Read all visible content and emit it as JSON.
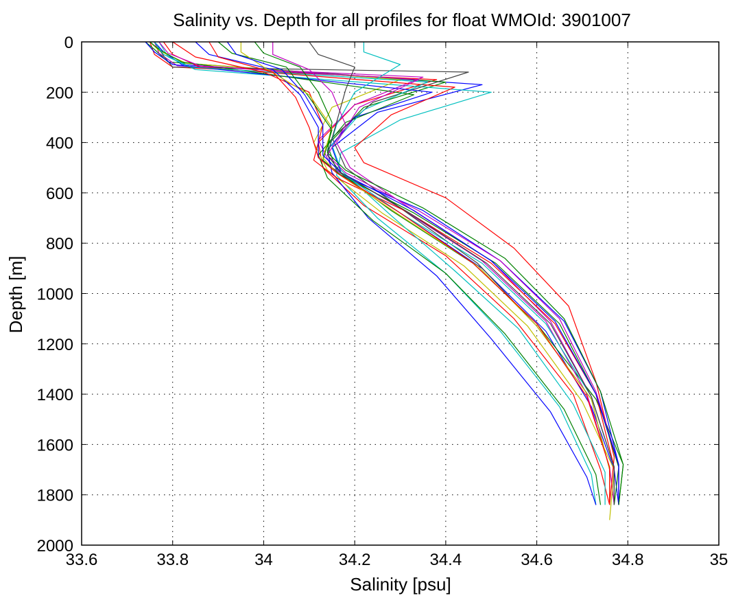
{
  "chart_data": {
    "type": "line",
    "title": "Salinity vs. Depth for all profiles for float WMOId: 3901007",
    "xlabel": "Salinity [psu]",
    "ylabel": "Depth [m]",
    "xlim": [
      33.6,
      35
    ],
    "ylim": [
      0,
      2000
    ],
    "y_reversed": true,
    "grid": true,
    "x_ticks": [
      "33.6",
      "33.8",
      "34",
      "34.2",
      "34.4",
      "34.6",
      "34.8",
      "35"
    ],
    "y_ticks": [
      "0",
      "200",
      "400",
      "600",
      "800",
      "1000",
      "1200",
      "1400",
      "1600",
      "1800",
      "2000"
    ],
    "series": [
      {
        "color": "#ff0000",
        "x": [
          33.75,
          33.76,
          33.8,
          34.38,
          34.2,
          34.12,
          34.13,
          34.22,
          34.4,
          34.55,
          34.68,
          34.74,
          34.76
        ],
        "y": [
          0,
          50,
          100,
          150,
          250,
          400,
          500,
          650,
          850,
          1100,
          1400,
          1700,
          1840
        ]
      },
      {
        "color": "#0000ff",
        "x": [
          33.76,
          33.78,
          33.82,
          34.48,
          34.25,
          34.15,
          34.17,
          34.3,
          34.48,
          34.62,
          34.72,
          34.77,
          34.78
        ],
        "y": [
          0,
          40,
          90,
          170,
          280,
          420,
          520,
          680,
          900,
          1150,
          1450,
          1700,
          1840
        ]
      },
      {
        "color": "#008000",
        "x": [
          33.74,
          33.76,
          33.79,
          34.4,
          34.22,
          34.14,
          34.16,
          34.28,
          34.46,
          34.6,
          34.73,
          34.79,
          34.78
        ],
        "y": [
          0,
          30,
          80,
          160,
          260,
          410,
          510,
          670,
          880,
          1120,
          1420,
          1680,
          1840
        ]
      },
      {
        "color": "#00bfbf",
        "x": [
          33.77,
          33.79,
          33.85,
          34.5,
          34.3,
          34.17,
          34.16,
          34.25,
          34.4,
          34.52,
          34.65,
          34.72,
          34.73
        ],
        "y": [
          0,
          60,
          110,
          200,
          310,
          440,
          530,
          700,
          920,
          1150,
          1450,
          1720,
          1840
        ]
      },
      {
        "color": "#bf00bf",
        "x": [
          33.76,
          33.77,
          33.81,
          34.35,
          34.2,
          34.12,
          34.15,
          34.3,
          34.48,
          34.62,
          34.71,
          34.76,
          34.77
        ],
        "y": [
          0,
          45,
          95,
          140,
          250,
          390,
          500,
          660,
          870,
          1110,
          1400,
          1690,
          1840
        ]
      },
      {
        "color": "#bfbf00",
        "x": [
          33.75,
          33.77,
          33.83,
          34.3,
          34.15,
          34.11,
          34.14,
          34.26,
          34.44,
          34.58,
          34.7,
          34.77,
          34.76
        ],
        "y": [
          0,
          35,
          85,
          150,
          260,
          400,
          510,
          680,
          890,
          1130,
          1430,
          1700,
          1900
        ]
      },
      {
        "color": "#404040",
        "x": [
          33.76,
          33.78,
          33.8,
          34.45,
          34.24,
          34.15,
          34.18,
          34.3,
          34.47,
          34.6,
          34.72,
          34.76,
          34.76
        ],
        "y": [
          0,
          55,
          100,
          120,
          240,
          380,
          500,
          660,
          880,
          1130,
          1420,
          1700,
          1840
        ]
      },
      {
        "color": "#ff0000",
        "x": [
          33.78,
          33.8,
          33.86,
          34.42,
          34.28,
          34.2,
          34.22,
          34.4,
          34.55,
          34.67,
          34.73,
          34.77,
          34.76
        ],
        "y": [
          0,
          50,
          100,
          180,
          290,
          420,
          480,
          620,
          820,
          1050,
          1350,
          1650,
          1840
        ]
      },
      {
        "color": "#0000ff",
        "x": [
          33.74,
          33.76,
          33.8,
          34.37,
          34.2,
          34.14,
          34.15,
          34.23,
          34.38,
          34.5,
          34.63,
          34.71,
          34.73
        ],
        "y": [
          0,
          40,
          90,
          200,
          300,
          430,
          520,
          700,
          930,
          1180,
          1470,
          1730,
          1840
        ]
      },
      {
        "color": "#008000",
        "x": [
          33.75,
          33.77,
          33.82,
          34.33,
          34.18,
          34.12,
          34.14,
          34.24,
          34.4,
          34.53,
          34.66,
          34.73,
          34.74
        ],
        "y": [
          0,
          30,
          80,
          210,
          320,
          450,
          540,
          710,
          920,
          1160,
          1460,
          1720,
          1840
        ]
      },
      {
        "color": "#00bfbf",
        "x": [
          33.76,
          33.78,
          33.84,
          34.36,
          34.22,
          34.15,
          34.17,
          34.28,
          34.42,
          34.56,
          34.68,
          34.75,
          34.75
        ],
        "y": [
          0,
          50,
          100,
          160,
          270,
          410,
          510,
          690,
          910,
          1140,
          1440,
          1710,
          1840
        ]
      },
      {
        "color": "#bf00bf",
        "x": [
          33.77,
          33.79,
          33.86,
          34.34,
          34.21,
          34.16,
          34.19,
          34.32,
          34.5,
          34.63,
          34.72,
          34.77,
          34.77
        ],
        "y": [
          0,
          45,
          95,
          150,
          260,
          400,
          500,
          660,
          870,
          1110,
          1410,
          1690,
          1840
        ]
      },
      {
        "color": "#ff0000",
        "x": [
          33.8,
          33.85,
          34.0,
          34.1,
          34.13,
          34.11,
          34.16,
          34.32,
          34.5,
          34.64,
          34.73,
          34.77,
          34.77
        ],
        "y": [
          0,
          60,
          120,
          200,
          330,
          470,
          540,
          680,
          880,
          1120,
          1400,
          1690,
          1840
        ]
      },
      {
        "color": "#0000ff",
        "x": [
          33.85,
          33.88,
          34.02,
          34.08,
          34.12,
          34.12,
          34.17,
          34.35,
          34.52,
          34.66,
          34.74,
          34.78,
          34.78
        ],
        "y": [
          0,
          50,
          110,
          210,
          340,
          460,
          530,
          670,
          870,
          1110,
          1390,
          1680,
          1840
        ]
      },
      {
        "color": "#008000",
        "x": [
          33.9,
          33.93,
          34.05,
          34.1,
          34.15,
          34.13,
          34.17,
          34.33,
          34.51,
          34.65,
          34.73,
          34.78,
          34.77
        ],
        "y": [
          0,
          45,
          100,
          220,
          350,
          470,
          530,
          680,
          880,
          1120,
          1400,
          1690,
          1840
        ]
      },
      {
        "color": "#00bfbf",
        "x": [
          34.22,
          34.22,
          34.3,
          34.2,
          34.16,
          34.14,
          34.17,
          34.3,
          34.48,
          34.62,
          34.72,
          34.77,
          34.77
        ],
        "y": [
          0,
          40,
          90,
          200,
          330,
          450,
          520,
          680,
          880,
          1120,
          1410,
          1690,
          1840
        ]
      },
      {
        "color": "#bfbf00",
        "x": [
          33.95,
          33.95,
          34.0,
          34.1,
          34.15,
          34.13,
          34.16,
          34.3,
          34.47,
          34.6,
          34.72,
          34.76,
          34.76
        ],
        "y": [
          0,
          40,
          100,
          210,
          340,
          460,
          520,
          690,
          890,
          1130,
          1420,
          1700,
          1840
        ]
      },
      {
        "color": "#bf00bf",
        "x": [
          34.02,
          34.02,
          34.1,
          34.15,
          34.18,
          34.14,
          34.18,
          34.34,
          34.52,
          34.65,
          34.73,
          34.78,
          34.78
        ],
        "y": [
          0,
          50,
          110,
          200,
          330,
          450,
          520,
          670,
          870,
          1100,
          1390,
          1680,
          1840
        ]
      },
      {
        "color": "#ff0000",
        "x": [
          33.88,
          33.9,
          34.02,
          34.07,
          34.1,
          34.12,
          34.16,
          34.3,
          34.46,
          34.6,
          34.71,
          34.76,
          34.76
        ],
        "y": [
          0,
          60,
          120,
          220,
          340,
          460,
          520,
          680,
          880,
          1120,
          1410,
          1690,
          1840
        ]
      },
      {
        "color": "#0000ff",
        "x": [
          33.92,
          33.94,
          34.04,
          34.09,
          34.13,
          34.13,
          34.17,
          34.33,
          34.5,
          34.64,
          34.73,
          34.78,
          34.78
        ],
        "y": [
          0,
          50,
          110,
          210,
          330,
          450,
          520,
          670,
          870,
          1110,
          1400,
          1680,
          1840
        ]
      },
      {
        "color": "#008000",
        "x": [
          33.98,
          34.0,
          34.08,
          34.12,
          34.15,
          34.14,
          34.18,
          34.35,
          34.53,
          34.66,
          34.74,
          34.79,
          34.78
        ],
        "y": [
          0,
          45,
          100,
          200,
          320,
          440,
          510,
          660,
          860,
          1100,
          1390,
          1680,
          1840
        ]
      },
      {
        "color": "#404040",
        "x": [
          34.1,
          34.12,
          34.2,
          34.18,
          34.16,
          34.14,
          34.17,
          34.32,
          34.49,
          34.63,
          34.72,
          34.77,
          34.77
        ],
        "y": [
          0,
          50,
          100,
          190,
          320,
          450,
          520,
          680,
          880,
          1120,
          1410,
          1690,
          1840
        ]
      }
    ]
  }
}
